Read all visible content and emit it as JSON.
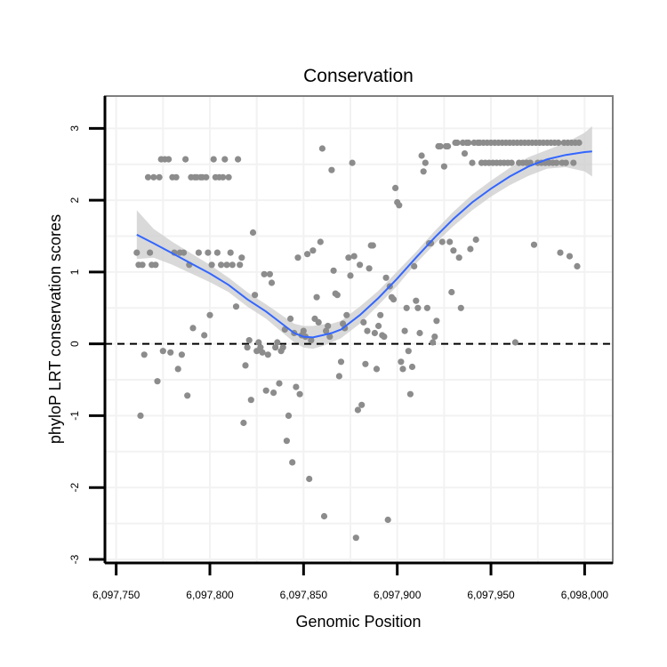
{
  "chart_data": {
    "type": "scatter",
    "title": "Conservation",
    "xlabel": "Genomic Position",
    "ylabel": "phyloP LRT conservation scores",
    "xlim": [
      6097744,
      6098015
    ],
    "ylim": [
      -3.05,
      3.45
    ],
    "x_ticks": [
      6097750,
      6097800,
      6097850,
      6097900,
      6097950,
      6098000
    ],
    "x_tick_labels": [
      "6,097,750",
      "6,097,800",
      "6,097,850",
      "6,097,900",
      "6,097,950",
      "6,098,000"
    ],
    "y_ticks": [
      -3,
      -2,
      -1,
      0,
      1,
      2,
      3
    ],
    "y_tick_labels": [
      "-3",
      "-2",
      "-1",
      "0",
      "1",
      "2",
      "3"
    ],
    "reference_line_y": 0,
    "grid": true,
    "colors": {
      "points": "#8c8c8c",
      "smooth": "#3366ff",
      "band": "#cccccc",
      "grid": "#f2f2f2",
      "border": "#7f7f7f",
      "refline": "#000000"
    },
    "points": [
      [
        6097761,
        1.27
      ],
      [
        6097762,
        1.1
      ],
      [
        6097763,
        -1.0
      ],
      [
        6097764,
        1.1
      ],
      [
        6097765,
        -0.15
      ],
      [
        6097767,
        2.32
      ],
      [
        6097768,
        1.27
      ],
      [
        6097769,
        1.1
      ],
      [
        6097770,
        2.32
      ],
      [
        6097771,
        1.1
      ],
      [
        6097772,
        -0.52
      ],
      [
        6097773,
        2.32
      ],
      [
        6097774,
        2.57
      ],
      [
        6097775,
        -0.1
      ],
      [
        6097776,
        2.57
      ],
      [
        6097778,
        2.57
      ],
      [
        6097779,
        -0.12
      ],
      [
        6097780,
        2.32
      ],
      [
        6097781,
        1.27
      ],
      [
        6097782,
        2.32
      ],
      [
        6097783,
        -0.35
      ],
      [
        6097784,
        1.27
      ],
      [
        6097785,
        -0.15
      ],
      [
        6097786,
        1.27
      ],
      [
        6097787,
        2.57
      ],
      [
        6097788,
        -0.72
      ],
      [
        6097789,
        1.1
      ],
      [
        6097790,
        2.32
      ],
      [
        6097791,
        0.22
      ],
      [
        6097792,
        2.32
      ],
      [
        6097793,
        2.32
      ],
      [
        6097794,
        1.27
      ],
      [
        6097795,
        2.32
      ],
      [
        6097796,
        2.32
      ],
      [
        6097797,
        0.12
      ],
      [
        6097798,
        2.32
      ],
      [
        6097799,
        1.27
      ],
      [
        6097800,
        0.4
      ],
      [
        6097801,
        1.1
      ],
      [
        6097802,
        2.57
      ],
      [
        6097803,
        2.32
      ],
      [
        6097804,
        1.27
      ],
      [
        6097805,
        2.32
      ],
      [
        6097806,
        1.1
      ],
      [
        6097807,
        2.32
      ],
      [
        6097808,
        2.57
      ],
      [
        6097809,
        1.1
      ],
      [
        6097810,
        2.32
      ],
      [
        6097811,
        1.27
      ],
      [
        6097812,
        1.1
      ],
      [
        6097814,
        0.52
      ],
      [
        6097815,
        2.57
      ],
      [
        6097816,
        1.1
      ],
      [
        6097817,
        1.2
      ],
      [
        6097818,
        -1.1
      ],
      [
        6097819,
        -0.3
      ],
      [
        6097820,
        -0.05
      ],
      [
        6097821,
        0.05
      ],
      [
        6097822,
        -0.78
      ],
      [
        6097823,
        1.55
      ],
      [
        6097824,
        0.68
      ],
      [
        6097825,
        -0.1
      ],
      [
        6097826,
        0.02
      ],
      [
        6097827,
        -0.05
      ],
      [
        6097828,
        -0.12
      ],
      [
        6097829,
        0.97
      ],
      [
        6097830,
        -0.65
      ],
      [
        6097831,
        -0.15
      ],
      [
        6097832,
        0.97
      ],
      [
        6097833,
        0.85
      ],
      [
        6097834,
        -0.68
      ],
      [
        6097835,
        -0.05
      ],
      [
        6097836,
        0.02
      ],
      [
        6097837,
        -0.55
      ],
      [
        6097838,
        -0.1
      ],
      [
        6097839,
        -0.05
      ],
      [
        6097840,
        0.2
      ],
      [
        6097841,
        -1.35
      ],
      [
        6097842,
        -1.0
      ],
      [
        6097843,
        0.35
      ],
      [
        6097844,
        -1.65
      ],
      [
        6097845,
        0.15
      ],
      [
        6097846,
        -0.6
      ],
      [
        6097847,
        1.2
      ],
      [
        6097848,
        -0.7
      ],
      [
        6097849,
        0.12
      ],
      [
        6097850,
        0.18
      ],
      [
        6097851,
        0.1
      ],
      [
        6097852,
        1.25
      ],
      [
        6097853,
        -1.88
      ],
      [
        6097854,
        0.05
      ],
      [
        6097855,
        1.3
      ],
      [
        6097856,
        0.35
      ],
      [
        6097857,
        0.65
      ],
      [
        6097858,
        0.3
      ],
      [
        6097859,
        1.42
      ],
      [
        6097860,
        2.72
      ],
      [
        6097861,
        -2.4
      ],
      [
        6097862,
        0.18
      ],
      [
        6097863,
        0.25
      ],
      [
        6097864,
        0.1
      ],
      [
        6097865,
        2.42
      ],
      [
        6097866,
        1.02
      ],
      [
        6097867,
        0.7
      ],
      [
        6097868,
        0.68
      ],
      [
        6097869,
        -0.45
      ],
      [
        6097870,
        -0.25
      ],
      [
        6097871,
        0.28
      ],
      [
        6097872,
        0.22
      ],
      [
        6097873,
        0.4
      ],
      [
        6097874,
        1.2
      ],
      [
        6097875,
        0.95
      ],
      [
        6097876,
        2.52
      ],
      [
        6097877,
        1.22
      ],
      [
        6097878,
        -2.7
      ],
      [
        6097879,
        -0.92
      ],
      [
        6097880,
        1.1
      ],
      [
        6097881,
        -0.85
      ],
      [
        6097882,
        0.3
      ],
      [
        6097883,
        -0.28
      ],
      [
        6097884,
        0.18
      ],
      [
        6097885,
        1.05
      ],
      [
        6097886,
        1.37
      ],
      [
        6097887,
        1.37
      ],
      [
        6097888,
        0.15
      ],
      [
        6097889,
        -0.35
      ],
      [
        6097890,
        0.25
      ],
      [
        6097891,
        0.4
      ],
      [
        6097892,
        0.12
      ],
      [
        6097893,
        0.1
      ],
      [
        6097894,
        0.92
      ],
      [
        6097895,
        -2.45
      ],
      [
        6097896,
        0.8
      ],
      [
        6097897,
        0.65
      ],
      [
        6097898,
        0.62
      ],
      [
        6097899,
        2.17
      ],
      [
        6097900,
        1.97
      ],
      [
        6097901,
        1.93
      ],
      [
        6097902,
        -0.25
      ],
      [
        6097903,
        -0.35
      ],
      [
        6097904,
        0.18
      ],
      [
        6097905,
        0.5
      ],
      [
        6097906,
        -0.1
      ],
      [
        6097907,
        -0.7
      ],
      [
        6097908,
        -0.32
      ],
      [
        6097909,
        1.08
      ],
      [
        6097910,
        0.6
      ],
      [
        6097911,
        0.5
      ],
      [
        6097912,
        0.15
      ],
      [
        6097913,
        2.62
      ],
      [
        6097914,
        2.4
      ],
      [
        6097915,
        2.52
      ],
      [
        6097916,
        0.5
      ],
      [
        6097917,
        1.4
      ],
      [
        6097918,
        1.4
      ],
      [
        6097919,
        0.02
      ],
      [
        6097920,
        0.1
      ],
      [
        6097921,
        0.32
      ],
      [
        6097922,
        2.75
      ],
      [
        6097923,
        2.75
      ],
      [
        6097924,
        1.42
      ],
      [
        6097925,
        2.47
      ],
      [
        6097926,
        2.75
      ],
      [
        6097927,
        2.75
      ],
      [
        6097928,
        1.42
      ],
      [
        6097929,
        0.72
      ],
      [
        6097930,
        1.3
      ],
      [
        6097931,
        2.8
      ],
      [
        6097932,
        2.8
      ],
      [
        6097933,
        1.2
      ],
      [
        6097934,
        0.5
      ],
      [
        6097935,
        2.8
      ],
      [
        6097936,
        2.65
      ],
      [
        6097937,
        2.8
      ],
      [
        6097938,
        2.8
      ],
      [
        6097939,
        1.32
      ],
      [
        6097940,
        2.52
      ],
      [
        6097941,
        2.8
      ],
      [
        6097942,
        1.45
      ],
      [
        6097943,
        2.8
      ],
      [
        6097944,
        2.8
      ],
      [
        6097945,
        2.52
      ],
      [
        6097946,
        2.8
      ],
      [
        6097947,
        2.52
      ],
      [
        6097948,
        2.8
      ],
      [
        6097949,
        2.52
      ],
      [
        6097950,
        2.8
      ],
      [
        6097951,
        2.52
      ],
      [
        6097952,
        2.8
      ],
      [
        6097953,
        2.52
      ],
      [
        6097954,
        2.8
      ],
      [
        6097955,
        2.52
      ],
      [
        6097956,
        2.8
      ],
      [
        6097957,
        2.52
      ],
      [
        6097958,
        2.8
      ],
      [
        6097959,
        2.52
      ],
      [
        6097960,
        2.8
      ],
      [
        6097961,
        2.52
      ],
      [
        6097962,
        2.8
      ],
      [
        6097963,
        0.02
      ],
      [
        6097964,
        2.8
      ],
      [
        6097965,
        2.52
      ],
      [
        6097966,
        2.8
      ],
      [
        6097967,
        2.52
      ],
      [
        6097968,
        2.8
      ],
      [
        6097969,
        2.52
      ],
      [
        6097970,
        2.8
      ],
      [
        6097971,
        2.52
      ],
      [
        6097972,
        2.8
      ],
      [
        6097973,
        1.38
      ],
      [
        6097974,
        2.8
      ],
      [
        6097975,
        2.52
      ],
      [
        6097976,
        2.8
      ],
      [
        6097977,
        2.52
      ],
      [
        6097978,
        2.8
      ],
      [
        6097979,
        2.52
      ],
      [
        6097980,
        2.8
      ],
      [
        6097981,
        2.52
      ],
      [
        6097982,
        2.8
      ],
      [
        6097983,
        2.52
      ],
      [
        6097984,
        2.8
      ],
      [
        6097985,
        2.52
      ],
      [
        6097986,
        2.8
      ],
      [
        6097987,
        1.27
      ],
      [
        6097988,
        2.52
      ],
      [
        6097989,
        2.8
      ],
      [
        6097990,
        2.52
      ],
      [
        6097991,
        2.8
      ],
      [
        6097992,
        1.22
      ],
      [
        6097993,
        2.8
      ],
      [
        6097994,
        2.52
      ],
      [
        6097995,
        2.8
      ],
      [
        6097996,
        1.08
      ],
      [
        6097997,
        2.8
      ]
    ],
    "smooth": {
      "x": [
        6097761,
        6097770,
        6097780,
        6097790,
        6097800,
        6097810,
        6097820,
        6097830,
        6097840,
        6097845,
        6097850,
        6097855,
        6097860,
        6097865,
        6097870,
        6097875,
        6097880,
        6097890,
        6097900,
        6097910,
        6097920,
        6097930,
        6097940,
        6097950,
        6097960,
        6097970,
        6097980,
        6097990,
        6098000,
        6098004
      ],
      "y": [
        1.52,
        1.4,
        1.26,
        1.12,
        0.98,
        0.82,
        0.62,
        0.45,
        0.25,
        0.15,
        0.1,
        0.09,
        0.12,
        0.15,
        0.2,
        0.3,
        0.4,
        0.64,
        0.91,
        1.2,
        1.48,
        1.74,
        1.97,
        2.16,
        2.33,
        2.47,
        2.57,
        2.63,
        2.67,
        2.68
      ],
      "lower": [
        1.18,
        1.2,
        1.1,
        0.98,
        0.86,
        0.72,
        0.52,
        0.35,
        0.13,
        0.02,
        -0.05,
        -0.07,
        -0.03,
        0.02,
        0.08,
        0.18,
        0.28,
        0.54,
        0.81,
        1.12,
        1.39,
        1.64,
        1.86,
        2.05,
        2.21,
        2.34,
        2.44,
        2.46,
        2.4,
        2.33
      ],
      "upper": [
        1.86,
        1.6,
        1.42,
        1.26,
        1.1,
        0.92,
        0.72,
        0.55,
        0.37,
        0.28,
        0.25,
        0.25,
        0.27,
        0.28,
        0.32,
        0.42,
        0.52,
        0.74,
        1.01,
        1.28,
        1.57,
        1.84,
        2.08,
        2.27,
        2.45,
        2.6,
        2.7,
        2.8,
        2.94,
        3.03
      ]
    }
  }
}
